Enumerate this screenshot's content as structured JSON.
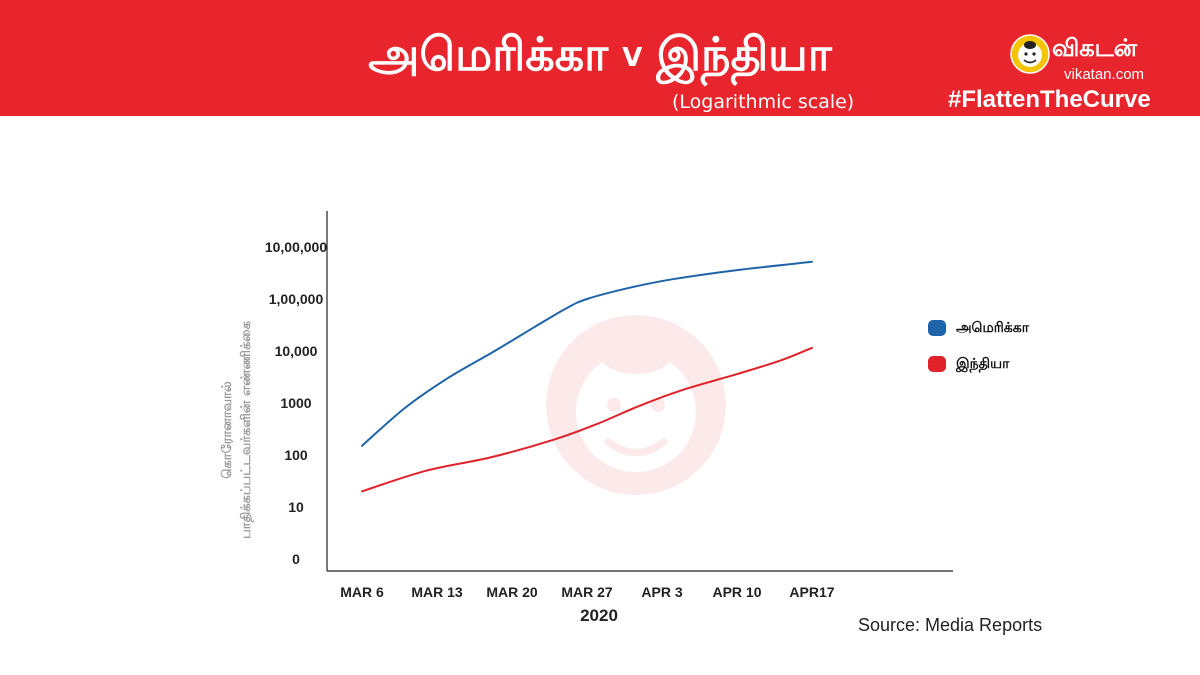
{
  "header": {
    "title_left": "அமெரிக்கா",
    "title_vs": "V",
    "title_right": "இந்தியா",
    "subtitle": "(Logarithmic scale)",
    "brand_name": "விகடன்",
    "brand_url": "vikatan.com",
    "hashtag": "#FlattenTheCurve"
  },
  "colors": {
    "banner": "#e8242c",
    "usa": "#1f64a8",
    "india": "#e0222a"
  },
  "source": "Source: Media Reports",
  "chart_data": {
    "type": "line",
    "title": "அமெரிக்கா V இந்தியா",
    "subtitle": "(Logarithmic scale)",
    "xlabel": "2020",
    "ylabel_lines": [
      "கொரோனாவால்",
      "பாதிக்கப்பட்டவர்களின் எண்ணிக்கை"
    ],
    "y_scale": "log",
    "y_ticks": [
      {
        "value": 1,
        "label": "0"
      },
      {
        "value": 10,
        "label": "10"
      },
      {
        "value": 100,
        "label": "100"
      },
      {
        "value": 1000,
        "label": "1000"
      },
      {
        "value": 10000,
        "label": "10,000"
      },
      {
        "value": 100000,
        "label": "1,00,000"
      },
      {
        "value": 1000000,
        "label": "10,00,000"
      }
    ],
    "ylim": [
      1,
      3000000
    ],
    "x_ticks": [
      "2020-03-06",
      "2020-03-13",
      "2020-03-20",
      "2020-03-27",
      "2020-04-03",
      "2020-04-10",
      "2020-04-17"
    ],
    "x_tick_labels": [
      "MAR 6",
      "MAR 13",
      "MAR 20",
      "MAR 27",
      "APR 3",
      "APR 10",
      "APR17"
    ],
    "xlim": [
      "2020-03-06",
      "2020-05-01"
    ],
    "legend_position": "right",
    "series": [
      {
        "name": "அமெரிக்கா",
        "color": "#1f64a8",
        "points": [
          [
            "2020-03-06",
            150
          ],
          [
            "2020-03-10",
            800
          ],
          [
            "2020-03-14",
            3000
          ],
          [
            "2020-03-18",
            9000
          ],
          [
            "2020-03-22",
            28000
          ],
          [
            "2020-03-25",
            65000
          ],
          [
            "2020-03-27",
            100000
          ],
          [
            "2020-03-31",
            165000
          ],
          [
            "2020-04-04",
            240000
          ],
          [
            "2020-04-10",
            360000
          ],
          [
            "2020-04-17",
            520000
          ]
        ]
      },
      {
        "name": "இந்தியா",
        "color": "#e0222a",
        "points": [
          [
            "2020-03-06",
            20
          ],
          [
            "2020-03-12",
            50
          ],
          [
            "2020-03-18",
            90
          ],
          [
            "2020-03-24",
            200
          ],
          [
            "2020-03-28",
            400
          ],
          [
            "2020-04-01",
            900
          ],
          [
            "2020-04-05",
            1800
          ],
          [
            "2020-04-10",
            3600
          ],
          [
            "2020-04-14",
            6500
          ],
          [
            "2020-04-17",
            11500
          ]
        ]
      }
    ]
  }
}
